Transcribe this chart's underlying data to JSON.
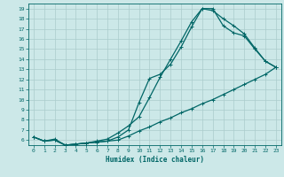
{
  "title": "",
  "xlabel": "Humidex (Indice chaleur)",
  "ylabel": "",
  "bg_color": "#cce8e8",
  "grid_color": "#aacccc",
  "line_color": "#006666",
  "xlim": [
    -0.5,
    23.5
  ],
  "ylim": [
    5.5,
    19.5
  ],
  "yticks": [
    6,
    7,
    8,
    9,
    10,
    11,
    12,
    13,
    14,
    15,
    16,
    17,
    18,
    19
  ],
  "xticks": [
    0,
    1,
    2,
    3,
    4,
    5,
    6,
    7,
    8,
    9,
    10,
    11,
    12,
    13,
    14,
    15,
    16,
    17,
    18,
    19,
    20,
    21,
    22,
    23
  ],
  "line1_x": [
    0,
    1,
    2,
    3,
    4,
    5,
    6,
    7,
    8,
    9,
    10,
    11,
    12,
    13,
    14,
    15,
    16,
    17,
    18,
    19,
    20,
    21,
    22,
    23
  ],
  "line1_y": [
    6.3,
    5.9,
    6.0,
    5.5,
    5.6,
    5.7,
    5.8,
    5.9,
    6.0,
    6.4,
    6.9,
    7.3,
    7.8,
    8.2,
    8.7,
    9.1,
    9.6,
    10.0,
    10.5,
    11.0,
    11.5,
    12.0,
    12.5,
    13.2
  ],
  "line2_x": [
    0,
    1,
    2,
    3,
    4,
    5,
    6,
    7,
    8,
    9,
    10,
    11,
    12,
    13,
    14,
    15,
    16,
    17,
    18,
    19,
    20,
    21,
    22,
    23
  ],
  "line2_y": [
    6.3,
    5.9,
    6.0,
    5.5,
    5.6,
    5.7,
    5.8,
    5.9,
    6.3,
    7.0,
    9.7,
    12.1,
    12.5,
    13.5,
    15.2,
    17.2,
    19.0,
    18.8,
    18.0,
    17.3,
    16.5,
    15.1,
    13.8,
    13.2
  ],
  "line3_x": [
    0,
    1,
    2,
    3,
    4,
    5,
    6,
    7,
    8,
    9,
    10,
    11,
    12,
    13,
    14,
    15,
    16,
    17,
    18,
    19,
    20,
    21,
    22,
    23
  ],
  "line3_y": [
    6.3,
    5.9,
    6.1,
    5.5,
    5.6,
    5.7,
    5.9,
    6.1,
    6.7,
    7.4,
    8.3,
    10.2,
    12.2,
    14.0,
    15.8,
    17.7,
    19.0,
    19.0,
    17.3,
    16.6,
    16.3,
    15.0,
    13.8,
    13.2
  ]
}
